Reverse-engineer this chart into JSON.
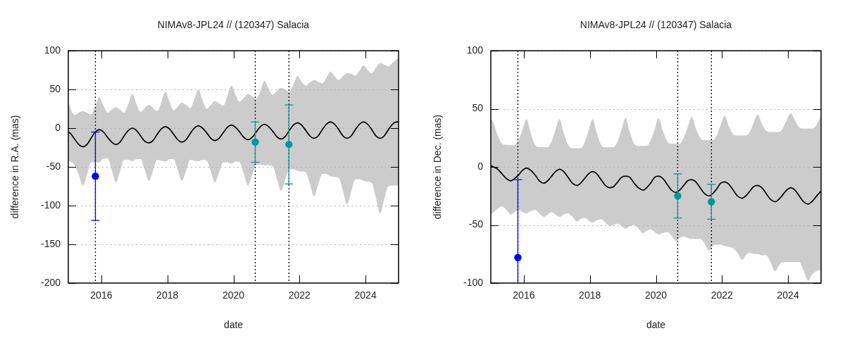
{
  "chart_data": [
    {
      "type": "line",
      "title": "NIMAv8-JPL24 // (120347) Salacia",
      "xlabel": "date",
      "ylabel": "difference in R.A. (mas)",
      "xlim": [
        2015,
        2025
      ],
      "xticks": [
        2016,
        2018,
        2020,
        2022,
        2024
      ],
      "ylim": [
        -200,
        100
      ],
      "yticks": [
        -200,
        -150,
        -100,
        -50,
        0,
        50,
        100
      ],
      "grid": "y",
      "ref_lines": [
        {
          "axis": "x",
          "value": 2015.82,
          "color": "#000000",
          "line_style": "dotted"
        },
        {
          "axis": "x",
          "value": 2020.66,
          "color": "#000000",
          "line_style": "dotted"
        },
        {
          "axis": "x",
          "value": 2021.68,
          "color": "#000000",
          "line_style": "dotted"
        }
      ],
      "series": [
        {
          "type": "line",
          "color": "#000000",
          "marker": "none",
          "x": [
            2015,
            2015.065,
            2015.19,
            2015.315,
            2015.44,
            2015.565,
            2015.69,
            2015.815,
            2015.94,
            2016.065,
            2016.19,
            2016.315,
            2016.44,
            2016.565,
            2016.69,
            2016.815,
            2016.94,
            2017.065,
            2017.19,
            2017.315,
            2017.44,
            2017.565,
            2017.69,
            2017.815,
            2017.94,
            2018.065,
            2018.19,
            2018.315,
            2018.44,
            2018.565,
            2018.69,
            2018.815,
            2018.94,
            2019.065,
            2019.19,
            2019.315,
            2019.44,
            2019.565,
            2019.69,
            2019.815,
            2019.94,
            2020.065,
            2020.19,
            2020.315,
            2020.44,
            2020.565,
            2020.69,
            2020.815,
            2020.94,
            2021.065,
            2021.19,
            2021.315,
            2021.44,
            2021.565,
            2021.69,
            2021.815,
            2021.94,
            2022.065,
            2022.19,
            2022.315,
            2022.44,
            2022.565,
            2022.69,
            2022.815,
            2022.94,
            2023.065,
            2023.19,
            2023.315,
            2023.44,
            2023.565,
            2023.69,
            2023.815,
            2023.94,
            2024.065,
            2024.19,
            2024.315,
            2024.44,
            2024.565,
            2024.69,
            2024.815,
            2024.94,
            2025
          ],
          "values": [
            -5,
            -7,
            -14,
            -21,
            -24,
            -21,
            -13,
            -5,
            -2,
            -5,
            -12,
            -18,
            -21,
            -18,
            -10,
            -3,
            0,
            -3,
            -10,
            -17,
            -19,
            -16,
            -8,
            -1,
            2,
            -1,
            -8,
            -15,
            -18,
            -15,
            -7,
            0,
            3,
            0,
            -6,
            -13,
            -16,
            -13,
            -6,
            1,
            4,
            1,
            -5,
            -12,
            -15,
            -12,
            -5,
            2,
            5,
            2,
            -4,
            -11,
            -14,
            -11,
            -3,
            4,
            7,
            4,
            -3,
            -10,
            -13,
            -10,
            -2,
            5,
            8,
            5,
            -2,
            -10,
            -13,
            -10,
            -2,
            5,
            8,
            5,
            -2,
            -10,
            -13,
            -10,
            -2,
            5,
            8,
            8
          ],
          "upper": [
            34,
            26,
            17,
            20,
            22,
            20,
            18,
            28,
            40,
            29,
            20,
            24,
            27,
            24,
            20,
            31,
            44,
            31,
            21,
            26,
            30,
            26,
            22,
            33,
            47,
            34,
            23,
            28,
            33,
            30,
            26,
            37,
            50,
            36,
            25,
            30,
            35,
            32,
            29,
            41,
            55,
            43,
            34,
            39,
            44,
            41,
            38,
            48,
            61,
            51,
            43,
            48,
            52,
            50,
            47,
            56,
            67,
            60,
            55,
            59,
            62,
            60,
            58,
            65,
            73,
            67,
            62,
            67,
            71,
            70,
            68,
            74,
            81,
            75,
            71,
            78,
            84,
            82,
            80,
            84,
            89,
            91
          ],
          "lower": [
            -42,
            -43,
            -48,
            -60,
            -74,
            -60,
            -44,
            -44,
            -44,
            -39,
            -39,
            -54,
            -70,
            -56,
            -41,
            -41,
            -43,
            -40,
            -40,
            -54,
            -68,
            -55,
            -41,
            -42,
            -43,
            -40,
            -40,
            -54,
            -68,
            -55,
            -41,
            -42,
            -43,
            -41,
            -42,
            -56,
            -70,
            -57,
            -44,
            -44,
            -46,
            -43,
            -44,
            -59,
            -74,
            -61,
            -47,
            -47,
            -48,
            -48,
            -49,
            -65,
            -81,
            -67,
            -53,
            -53,
            -55,
            -56,
            -57,
            -72,
            -88,
            -73,
            -59,
            -59,
            -62,
            -63,
            -64,
            -81,
            -98,
            -82,
            -66,
            -66,
            -68,
            -69,
            -71,
            -90,
            -110,
            -92,
            -75,
            -74,
            -74,
            -73
          ]
        },
        {
          "type": "scatter",
          "color": "#0000ff",
          "marker": "circle",
          "x": [
            2015.82
          ],
          "values": [
            -62
          ],
          "errors": [
            57
          ]
        },
        {
          "type": "scatter",
          "color": "#009999",
          "marker": "circle",
          "x": [
            2020.66,
            2021.68
          ],
          "values": [
            -18,
            -21
          ],
          "errors": [
            26,
            51
          ]
        }
      ]
    },
    {
      "type": "line",
      "title": "NIMAv8-JPL24 // (120347) Salacia",
      "xlabel": "date",
      "ylabel": "difference in Dec. (mas)",
      "xlim": [
        2015,
        2025
      ],
      "xticks": [
        2016,
        2018,
        2020,
        2022,
        2024
      ],
      "ylim": [
        -100,
        100
      ],
      "yticks": [
        -100,
        -50,
        0,
        50,
        100
      ],
      "grid": "y",
      "ref_lines": [
        {
          "axis": "x",
          "value": 2015.82,
          "color": "#000000",
          "line_style": "dotted"
        },
        {
          "axis": "x",
          "value": 2020.66,
          "color": "#000000",
          "line_style": "dotted"
        },
        {
          "axis": "x",
          "value": 2021.68,
          "color": "#000000",
          "line_style": "dotted"
        }
      ],
      "series": [
        {
          "type": "line",
          "color": "#000000",
          "marker": "none",
          "x": [
            2015,
            2015.08,
            2015.21,
            2015.34,
            2015.47,
            2015.61,
            2015.72,
            2015.84,
            2015.96,
            2016.08,
            2016.21,
            2016.34,
            2016.47,
            2016.61,
            2016.72,
            2016.84,
            2016.96,
            2017.08,
            2017.21,
            2017.34,
            2017.47,
            2017.61,
            2017.72,
            2017.84,
            2017.96,
            2018.08,
            2018.21,
            2018.34,
            2018.47,
            2018.61,
            2018.72,
            2018.84,
            2018.96,
            2019.08,
            2019.21,
            2019.34,
            2019.47,
            2019.61,
            2019.72,
            2019.84,
            2019.96,
            2020.08,
            2020.21,
            2020.34,
            2020.47,
            2020.61,
            2020.72,
            2020.84,
            2020.96,
            2021.08,
            2021.21,
            2021.34,
            2021.47,
            2021.61,
            2021.72,
            2021.84,
            2021.96,
            2022.08,
            2022.21,
            2022.34,
            2022.47,
            2022.61,
            2022.72,
            2022.84,
            2022.96,
            2023.08,
            2023.21,
            2023.34,
            2023.47,
            2023.61,
            2023.72,
            2023.84,
            2023.96,
            2024.08,
            2024.21,
            2024.34,
            2024.47,
            2024.61,
            2024.72,
            2024.84,
            2024.96,
            2025
          ],
          "values": [
            1,
            0,
            -2,
            -6,
            -10,
            -12,
            -10,
            -7,
            -3,
            -1,
            -3,
            -7,
            -12,
            -14,
            -12,
            -8,
            -4,
            -2,
            -4,
            -9,
            -14,
            -16,
            -14,
            -10,
            -6,
            -4,
            -6,
            -11,
            -16,
            -18,
            -17,
            -13,
            -9,
            -8,
            -9,
            -14,
            -18,
            -20,
            -18,
            -14,
            -9,
            -8,
            -10,
            -15,
            -20,
            -22,
            -20,
            -16,
            -12,
            -11,
            -13,
            -18,
            -23,
            -25,
            -23,
            -19,
            -14,
            -13,
            -15,
            -20,
            -25,
            -27,
            -25,
            -21,
            -17,
            -16,
            -18,
            -23,
            -28,
            -30,
            -28,
            -24,
            -20,
            -18,
            -20,
            -25,
            -30,
            -32,
            -30,
            -26,
            -22,
            -21
          ],
          "upper": [
            41,
            38,
            27,
            20,
            19,
            19,
            19,
            23,
            32,
            41,
            29,
            19,
            17,
            17,
            17,
            22,
            32,
            41,
            29,
            19,
            16,
            16,
            16,
            21,
            31,
            41,
            29,
            19,
            17,
            17,
            17,
            22,
            32,
            42,
            30,
            20,
            18,
            18,
            18,
            23,
            32,
            42,
            31,
            22,
            20,
            20,
            20,
            25,
            34,
            43,
            33,
            25,
            23,
            23,
            23,
            27,
            36,
            44,
            35,
            28,
            27,
            27,
            27,
            30,
            38,
            45,
            37,
            31,
            30,
            30,
            30,
            33,
            40,
            46,
            40,
            34,
            33,
            33,
            33,
            35,
            42,
            45
          ],
          "lower": [
            -41,
            -39,
            -36,
            -34,
            -37,
            -41,
            -39,
            -37,
            -39,
            -40,
            -38,
            -37,
            -40,
            -43,
            -41,
            -39,
            -41,
            -43,
            -41,
            -40,
            -43,
            -47,
            -45,
            -44,
            -46,
            -48,
            -46,
            -45,
            -48,
            -51,
            -50,
            -49,
            -51,
            -53,
            -51,
            -50,
            -53,
            -57,
            -55,
            -54,
            -56,
            -58,
            -57,
            -56,
            -59,
            -64,
            -61,
            -60,
            -61,
            -62,
            -62,
            -62,
            -66,
            -72,
            -68,
            -67,
            -67,
            -68,
            -69,
            -70,
            -74,
            -80,
            -76,
            -74,
            -75,
            -75,
            -76,
            -76,
            -82,
            -90,
            -85,
            -82,
            -82,
            -82,
            -82,
            -82,
            -89,
            -98,
            -93,
            -90,
            -89,
            -89
          ]
        },
        {
          "type": "scatter",
          "color": "#0000ff",
          "marker": "circle",
          "x": [
            2015.82
          ],
          "values": [
            -78
          ],
          "errors": [
            [
              -100,
              -11
            ]
          ]
        },
        {
          "type": "scatter",
          "color": "#009999",
          "marker": "circle",
          "x": [
            2020.66,
            2021.68
          ],
          "values": [
            -25,
            -30
          ],
          "errors": [
            19,
            15
          ]
        }
      ]
    }
  ]
}
